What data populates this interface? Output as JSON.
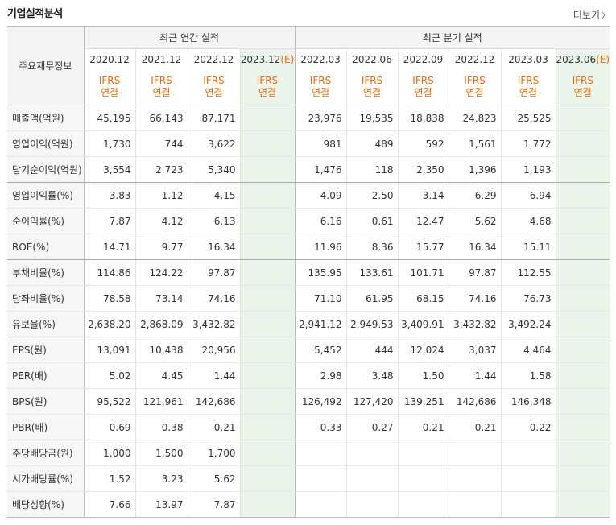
{
  "title": "기업실적분석",
  "more_label": "더보기",
  "label_header": "주요재무정보",
  "annual_group": "최근 연간 실적",
  "quarter_group": "최근 분기 실적",
  "annual_periods": [
    "2020.12",
    "2021.12",
    "2022.12",
    "2023.12"
  ],
  "estimate_mark": "(E)",
  "quarter_periods": [
    "2022.03",
    "2022.06",
    "2022.09",
    "2022.12",
    "2023.03",
    "2023.06"
  ],
  "accounting_top": "IFRS",
  "accounting_bottom": "연결",
  "rows": [
    {
      "label": "매출액(억원)",
      "annual": [
        "45,195",
        "66,143",
        "87,171",
        ""
      ],
      "quarter": [
        "23,976",
        "19,535",
        "18,838",
        "24,823",
        "25,525",
        ""
      ]
    },
    {
      "label": "영업이익(억원)",
      "annual": [
        "1,730",
        "744",
        "3,622",
        ""
      ],
      "quarter": [
        "981",
        "489",
        "592",
        "1,561",
        "1,772",
        ""
      ]
    },
    {
      "label": "당기순이익(억원)",
      "annual": [
        "3,554",
        "2,723",
        "5,340",
        ""
      ],
      "quarter": [
        "1,476",
        "118",
        "2,350",
        "1,396",
        "1,193",
        ""
      ]
    },
    {
      "label": "영업이익률(%)",
      "annual": [
        "3.83",
        "1.12",
        "4.15",
        ""
      ],
      "quarter": [
        "4.09",
        "2.50",
        "3.14",
        "6.29",
        "6.94",
        ""
      ]
    },
    {
      "label": "순이익률(%)",
      "annual": [
        "7.87",
        "4.12",
        "6.13",
        ""
      ],
      "quarter": [
        "6.16",
        "0.61",
        "12.47",
        "5.62",
        "4.68",
        ""
      ]
    },
    {
      "label": "ROE(%)",
      "annual": [
        "14.71",
        "9.77",
        "16.34",
        ""
      ],
      "quarter": [
        "11.96",
        "8.36",
        "15.77",
        "16.34",
        "15.11",
        ""
      ]
    },
    {
      "label": "부채비율(%)",
      "annual": [
        "114.86",
        "124.22",
        "97.87",
        ""
      ],
      "quarter": [
        "135.95",
        "133.61",
        "101.71",
        "97.87",
        "112.55",
        ""
      ]
    },
    {
      "label": "당좌비율(%)",
      "annual": [
        "78.58",
        "73.14",
        "74.16",
        ""
      ],
      "quarter": [
        "71.10",
        "61.95",
        "68.15",
        "74.16",
        "76.73",
        ""
      ]
    },
    {
      "label": "유보율(%)",
      "annual": [
        "2,638.20",
        "2,868.09",
        "3,432.82",
        ""
      ],
      "quarter": [
        "2,941.12",
        "2,949.53",
        "3,409.91",
        "3,432.82",
        "3,492.24",
        ""
      ]
    },
    {
      "label": "EPS(원)",
      "annual": [
        "13,091",
        "10,438",
        "20,956",
        ""
      ],
      "quarter": [
        "5,452",
        "444",
        "12,024",
        "3,037",
        "4,464",
        ""
      ]
    },
    {
      "label": "PER(배)",
      "annual": [
        "5.02",
        "4.45",
        "1.44",
        ""
      ],
      "quarter": [
        "2.98",
        "3.48",
        "1.50",
        "1.44",
        "1.58",
        ""
      ]
    },
    {
      "label": "BPS(원)",
      "annual": [
        "95,522",
        "121,961",
        "142,686",
        ""
      ],
      "quarter": [
        "126,492",
        "127,420",
        "139,251",
        "142,686",
        "146,348",
        ""
      ]
    },
    {
      "label": "PBR(배)",
      "annual": [
        "0.69",
        "0.38",
        "0.21",
        ""
      ],
      "quarter": [
        "0.33",
        "0.27",
        "0.21",
        "0.21",
        "0.22",
        ""
      ]
    },
    {
      "label": "주당배당금(원)",
      "annual": [
        "1,000",
        "1,500",
        "1,700",
        ""
      ],
      "quarter": [
        "",
        "",
        "",
        "",
        "",
        ""
      ]
    },
    {
      "label": "시가배당률(%)",
      "annual": [
        "1.52",
        "3.23",
        "5.62",
        ""
      ],
      "quarter": [
        "",
        "",
        "",
        "",
        "",
        ""
      ]
    },
    {
      "label": "배당성향(%)",
      "annual": [
        "7.66",
        "13.97",
        "7.87",
        ""
      ],
      "quarter": [
        "",
        "",
        "",
        "",
        "",
        ""
      ]
    }
  ]
}
